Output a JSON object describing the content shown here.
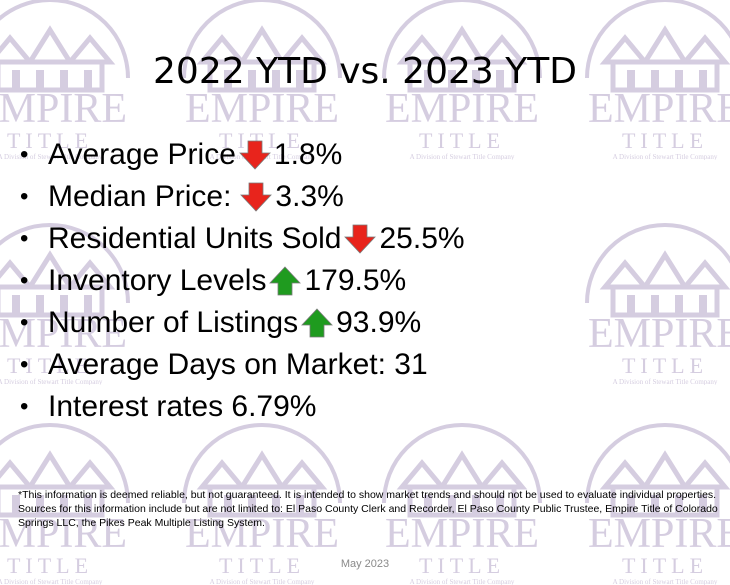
{
  "slide": {
    "title": "2022 YTD vs. 2023 YTD",
    "bullets": [
      {
        "label": "Average Price",
        "direction": "down",
        "value": "1.8%"
      },
      {
        "label": "Median Price:",
        "direction": "down",
        "value": "3.3%"
      },
      {
        "label": "Residential Units Sold",
        "direction": "down",
        "value": "25.5%"
      },
      {
        "label": "Inventory Levels",
        "direction": "up",
        "value": "179.5%"
      },
      {
        "label": "Number of Listings",
        "direction": "up",
        "value": "93.9%"
      },
      {
        "label": "Average Days on Market: 31",
        "direction": "none",
        "value": ""
      },
      {
        "label": "Interest rates 6.79%",
        "direction": "none",
        "value": ""
      }
    ],
    "bullet_glyph": "•",
    "disclaimer": "*This information is deemed reliable, but not guaranteed.  It is intended to show market trends and should not be used to evaluate individual properties.  Sources for this information include but are not limited to: El Paso County Clerk and Recorder, El Paso County Public Trustee, Empire Title of Colorado Springs LLC, the Pikes Peak Multiple Listing System.",
    "date": "May 2023"
  },
  "watermark": {
    "brand": "EMPIRE",
    "sub": "TITLE",
    "tagline": "A Division of Stewart Title Company",
    "color": "#d5cde0"
  },
  "colors": {
    "down_arrow": "#e8241c",
    "up_arrow": "#1f9b1f",
    "text": "#000000",
    "date": "#8a8a8a"
  },
  "icons": {
    "down": "red-down-arrow-icon",
    "up": "green-up-arrow-icon"
  }
}
